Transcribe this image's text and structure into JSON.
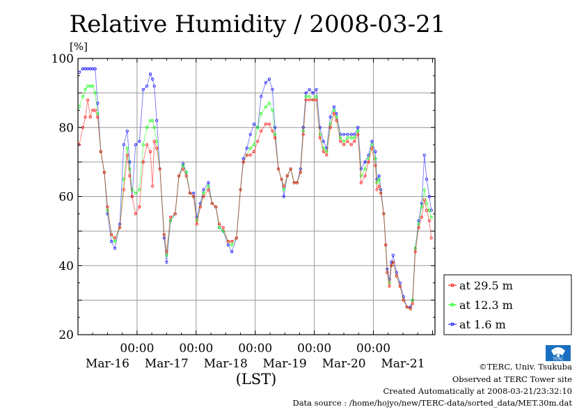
{
  "chart_data": {
    "type": "line",
    "title": "Relative Humidity / 2008-03-21",
    "ylabel": "[%]",
    "xlabel": "(LST)",
    "ylim": [
      20,
      100
    ],
    "yticks": [
      20,
      40,
      60,
      80,
      100
    ],
    "xlim_hours_from_Mar15_0000": [
      0,
      145
    ],
    "xticks": [
      {
        "hour": 24,
        "label": "00:00"
      },
      {
        "hour": 48,
        "label": "00:00"
      },
      {
        "hour": 72,
        "label": "00:00"
      },
      {
        "hour": 96,
        "label": "00:00"
      },
      {
        "hour": 120,
        "label": "00:00"
      }
    ],
    "date_labels": [
      {
        "hour": 12,
        "label": "Mar-16"
      },
      {
        "hour": 36,
        "label": "Mar-17"
      },
      {
        "hour": 60,
        "label": "Mar-18"
      },
      {
        "hour": 84,
        "label": "Mar-19"
      },
      {
        "hour": 108,
        "label": "Mar-20"
      },
      {
        "hour": 132,
        "label": "Mar-21"
      }
    ],
    "grid": true,
    "legend_position": "right-bottom-outside",
    "x": [
      0.5,
      2,
      3,
      4,
      5,
      6,
      7,
      8,
      9.3,
      10.7,
      12,
      13.6,
      15,
      17,
      18.6,
      20,
      21,
      22,
      23.4,
      25,
      26.5,
      28,
      29.4,
      30.3,
      31,
      32,
      33.3,
      35,
      36,
      37.6,
      39.5,
      41,
      42.7,
      44,
      45.5,
      47,
      48.3,
      49.7,
      51,
      53,
      54.5,
      56,
      57.4,
      59,
      61,
      62.5,
      64.4,
      66,
      67.2,
      68.6,
      70,
      71.5,
      73,
      74.4,
      76.3,
      77.7,
      79,
      80,
      81.4,
      82.7,
      83.6,
      85,
      86.4,
      87.8,
      89,
      90.4,
      91.5,
      92.6,
      94,
      95.4,
      96.8,
      98.3,
      99.7,
      101,
      102.5,
      104,
      105,
      106.6,
      108,
      109.5,
      111,
      112.3,
      113.7,
      115,
      116.6,
      118,
      119.4,
      120.8,
      121.4,
      122.3,
      123,
      124.2,
      125,
      125.6,
      126.5,
      127.3,
      128,
      129.4,
      130.8,
      132.2,
      133.6,
      135,
      135.9,
      137,
      138.4,
      139.6,
      140.7,
      141.6,
      142.7,
      143.5
    ],
    "series": [
      {
        "name": "at 1.6 m",
        "color": "#0000ff",
        "values": [
          96,
          97,
          97,
          97,
          97,
          97,
          97,
          87,
          73,
          67,
          55,
          47,
          45,
          52,
          75,
          79,
          70,
          60,
          75,
          76,
          91,
          92,
          95.5,
          94,
          92,
          82,
          68,
          48,
          41,
          53,
          55,
          66,
          69.5,
          67,
          61,
          61,
          54,
          58,
          62,
          64,
          58,
          57,
          51,
          50,
          46,
          44,
          48,
          62,
          71,
          74,
          78,
          81,
          80,
          89,
          93,
          94,
          91,
          80,
          68,
          65,
          60,
          66,
          68,
          64,
          64,
          68,
          80,
          90,
          91,
          90,
          91,
          80,
          76,
          74,
          83,
          86,
          84,
          78,
          78,
          78,
          78,
          78,
          80,
          68,
          70,
          72,
          76,
          73,
          65,
          66,
          62,
          55,
          46,
          39,
          36,
          41,
          43,
          38,
          35,
          31,
          28,
          28,
          30,
          45,
          53,
          58,
          72,
          65,
          60,
          56
        ]
      },
      {
        "name": "at 12.3 m",
        "color": "#00ff00",
        "values": [
          86,
          89,
          91,
          92,
          92,
          92,
          90,
          84,
          73,
          67,
          56,
          49,
          47,
          51,
          65,
          74,
          68,
          62,
          61,
          62,
          75,
          80,
          82,
          82,
          80,
          76,
          68,
          49,
          43,
          53,
          55,
          66,
          69,
          67,
          61,
          60,
          53,
          57,
          61,
          63,
          58,
          57,
          51,
          50,
          47,
          46,
          48,
          62,
          70,
          72,
          74,
          75,
          80,
          84,
          86,
          87,
          85,
          78,
          68,
          65,
          62,
          66,
          68,
          64,
          64,
          67,
          79,
          89,
          89,
          88,
          89,
          78,
          74,
          73,
          81,
          85,
          83,
          77,
          76,
          77,
          77,
          77,
          79,
          66,
          68,
          71,
          75,
          71,
          64,
          65,
          61,
          55,
          46,
          38,
          35,
          40,
          41,
          37,
          34,
          30,
          28,
          27.5,
          30,
          45,
          52,
          57,
          62,
          58,
          56,
          54
        ]
      },
      {
        "name": "at 29.5 m",
        "color": "#ff0000",
        "values": [
          75,
          80,
          83,
          88,
          83,
          85,
          85,
          83,
          73,
          67,
          57,
          49,
          48,
          51,
          62,
          72,
          66,
          60,
          55,
          57,
          70,
          75,
          73,
          63,
          76,
          74,
          68,
          49,
          44,
          54,
          55,
          66,
          68,
          66,
          61,
          60,
          52,
          57,
          60,
          62,
          58,
          57,
          52,
          51,
          47,
          47,
          48,
          62,
          70,
          72,
          72,
          73,
          76,
          79,
          81,
          81,
          79,
          77,
          68,
          65,
          63,
          66,
          68,
          64,
          64,
          67,
          78,
          88,
          88,
          88,
          88,
          77,
          73,
          72,
          80,
          84,
          82,
          76,
          75,
          76,
          75,
          76,
          78,
          64,
          66,
          70,
          74,
          69,
          62,
          63,
          61,
          55,
          46,
          38,
          34,
          40,
          41,
          37,
          34,
          30,
          28,
          27.5,
          29,
          44,
          51,
          54,
          59,
          56,
          53,
          48
        ]
      }
    ]
  },
  "footer": {
    "copyright": "©TERC, Univ. Tsukuba",
    "observed": "Observed at TERC Tower site",
    "created": "Created Automatically at 2008-03-21/23:32:10",
    "source": "Data source : /home/hojyo/new/TERC-data/sorted_data/MET.30m.dat",
    "logo_text": "TERC"
  }
}
